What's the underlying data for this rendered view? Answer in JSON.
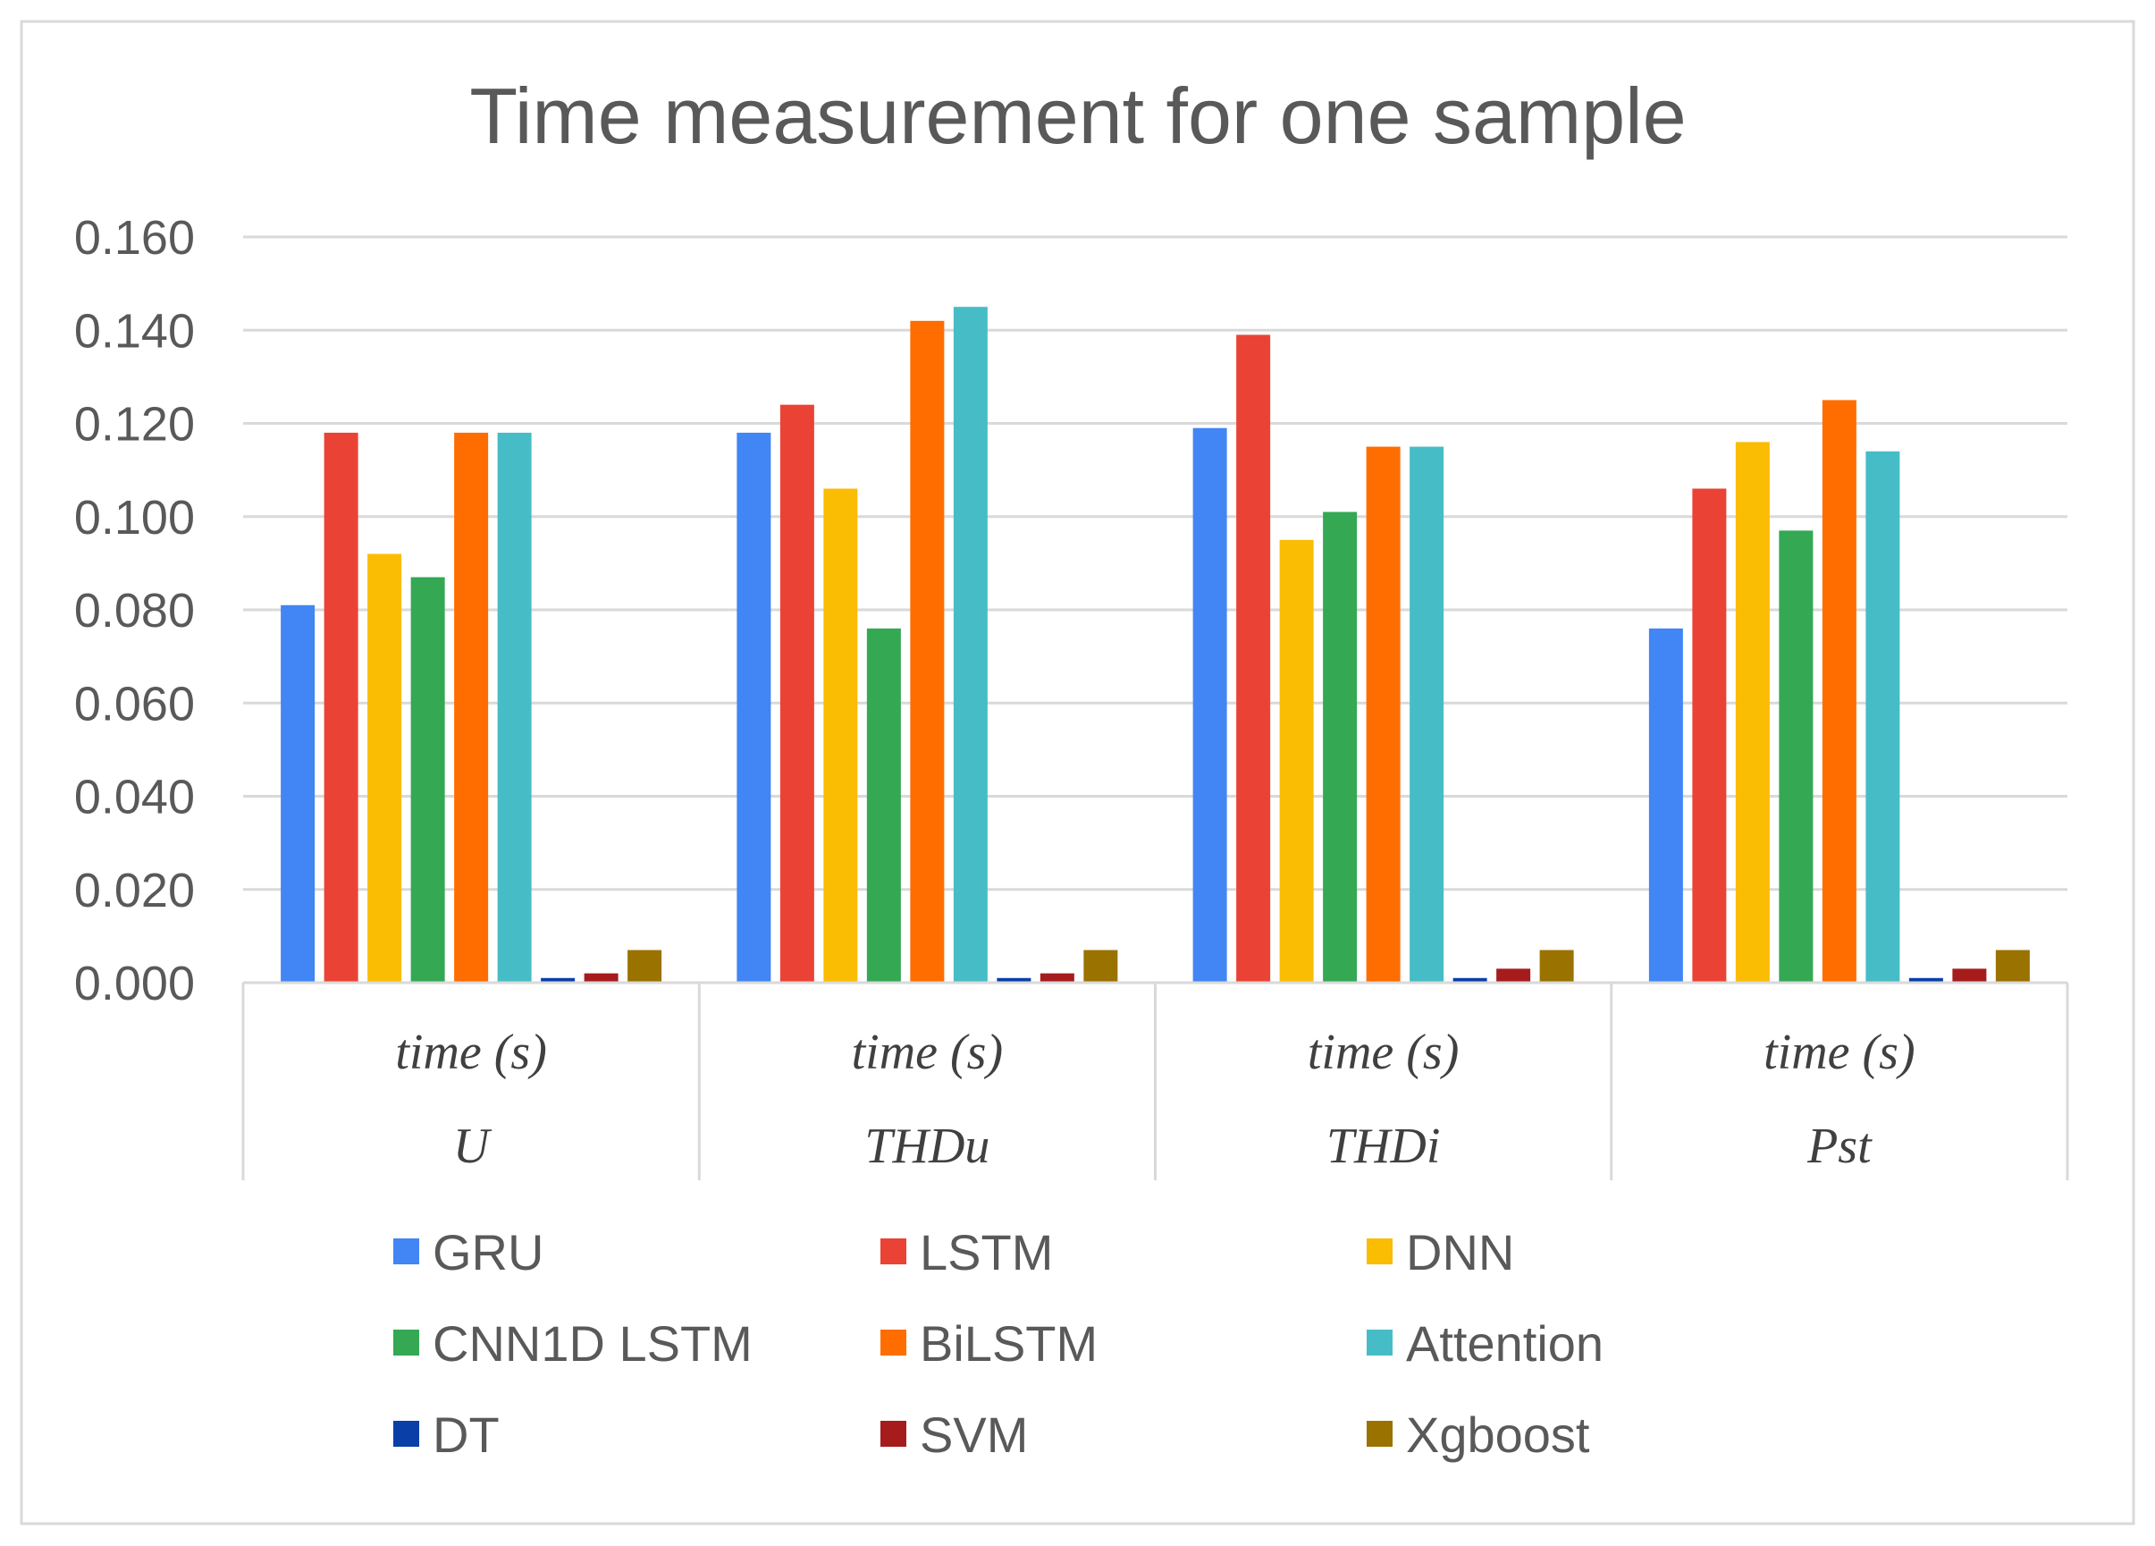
{
  "chart_data": {
    "type": "bar",
    "title": "Time measurement for one sample",
    "xlabel": "",
    "ylabel": "",
    "ylim": [
      0,
      0.16
    ],
    "yticks": [
      "0.000",
      "0.020",
      "0.040",
      "0.060",
      "0.080",
      "0.100",
      "0.120",
      "0.140",
      "0.160"
    ],
    "grid": true,
    "legend_position": "bottom",
    "categories": [
      {
        "top": "time (s)",
        "bottom": "U"
      },
      {
        "top": "time (s)",
        "bottom": "THDu"
      },
      {
        "top": "time (s)",
        "bottom": "THDi"
      },
      {
        "top": "time (s)",
        "bottom": "Pst"
      }
    ],
    "series": [
      {
        "name": "GRU",
        "color": "#4285F4",
        "values": [
          0.081,
          0.118,
          0.119,
          0.076
        ]
      },
      {
        "name": "LSTM",
        "color": "#EA4335",
        "values": [
          0.118,
          0.124,
          0.139,
          0.106
        ]
      },
      {
        "name": "DNN",
        "color": "#FBBC04",
        "values": [
          0.092,
          0.106,
          0.095,
          0.116
        ]
      },
      {
        "name": "CNN1D LSTM",
        "color": "#34A853",
        "values": [
          0.087,
          0.076,
          0.101,
          0.097
        ]
      },
      {
        "name": "BiLSTM",
        "color": "#FF6D01",
        "values": [
          0.118,
          0.142,
          0.115,
          0.125
        ]
      },
      {
        "name": "Attention",
        "color": "#46BDC6",
        "values": [
          0.118,
          0.145,
          0.115,
          0.114
        ]
      },
      {
        "name": "DT",
        "color": "#0B3FA8",
        "values": [
          0.001,
          0.001,
          0.001,
          0.001
        ]
      },
      {
        "name": "SVM",
        "color": "#A61C1C",
        "values": [
          0.002,
          0.002,
          0.003,
          0.003
        ]
      },
      {
        "name": "Xgboost",
        "color": "#9A7200",
        "values": [
          0.007,
          0.007,
          0.007,
          0.007
        ]
      }
    ]
  }
}
